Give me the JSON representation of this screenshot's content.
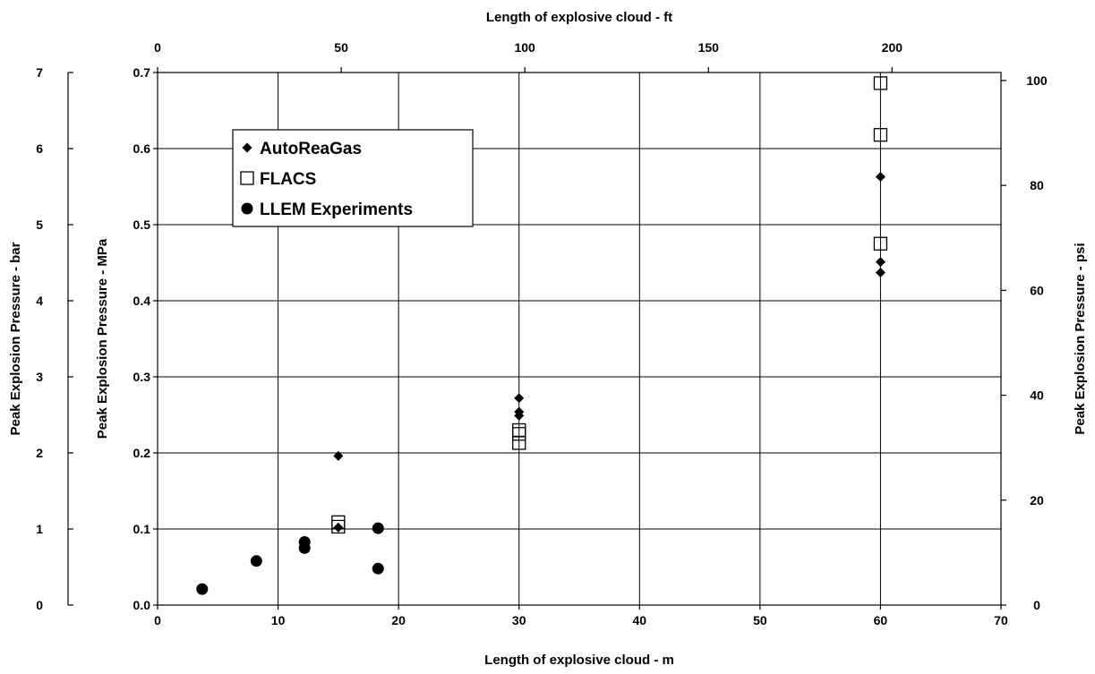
{
  "chart_data": {
    "type": "scatter",
    "x": {
      "label": "Length of explosive cloud - m",
      "range": [
        0,
        70
      ],
      "ticks": [
        0,
        10,
        20,
        30,
        40,
        50,
        60,
        70
      ]
    },
    "x2": {
      "label": "Length of explosive cloud - ft",
      "ticks": [
        0,
        50,
        100,
        150,
        200
      ]
    },
    "y": {
      "label": "Peak Explosion Pressure - MPa",
      "range": [
        0,
        0.7
      ],
      "ticks": [
        "0.0",
        "0.1",
        "0.2",
        "0.3",
        "0.4",
        "0.5",
        "0.6",
        "0.7"
      ]
    },
    "y_left": {
      "label": "Peak Explosion Pressure - bar",
      "ticks": [
        0,
        1,
        2,
        3,
        4,
        5,
        6,
        7
      ]
    },
    "y_right": {
      "label": "Peak Explosion Pressure - psi",
      "ticks": [
        0,
        20,
        40,
        60,
        80,
        100
      ]
    },
    "grid": true,
    "legend_position": "top-left",
    "series": [
      {
        "name": "AutoReaGas",
        "marker": "diamond",
        "points": [
          [
            15,
            0.196
          ],
          [
            15,
            0.102
          ],
          [
            30,
            0.272
          ],
          [
            30,
            0.254
          ],
          [
            30,
            0.249
          ],
          [
            60,
            0.563
          ],
          [
            60,
            0.451
          ],
          [
            60,
            0.437
          ]
        ]
      },
      {
        "name": "FLACS",
        "marker": "square-open",
        "points": [
          [
            15,
            0.109
          ],
          [
            15,
            0.103
          ],
          [
            30,
            0.23
          ],
          [
            30,
            0.225
          ],
          [
            30,
            0.213
          ],
          [
            60,
            0.686
          ],
          [
            60,
            0.618
          ],
          [
            60,
            0.475
          ]
        ]
      },
      {
        "name": "LLEM Experiments",
        "marker": "circle",
        "points": [
          [
            3.7,
            0.021
          ],
          [
            8.2,
            0.058
          ],
          [
            12.2,
            0.083
          ],
          [
            12.2,
            0.075
          ],
          [
            18.3,
            0.101
          ],
          [
            18.3,
            0.048
          ]
        ]
      }
    ]
  }
}
